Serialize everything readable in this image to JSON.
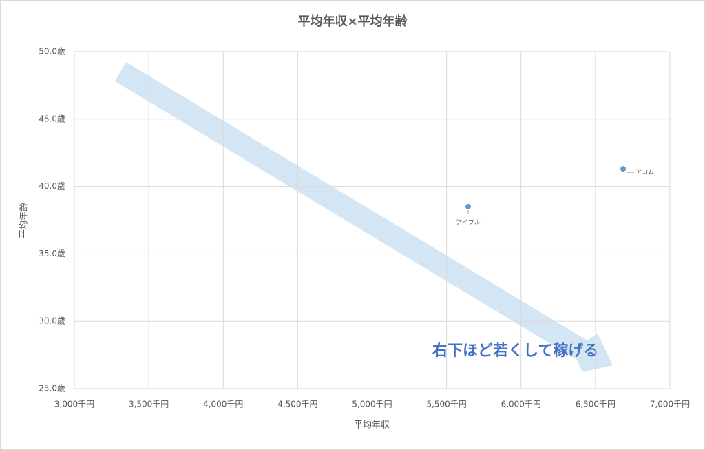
{
  "chart_data": {
    "type": "scatter",
    "title": "平均年収×平均年齢",
    "x_label": "平均年収",
    "y_label": "平均年齢",
    "x": [
      5645,
      6686
    ],
    "values": [
      38.5,
      41.3
    ],
    "point_labels": [
      "アイフル",
      "アコム"
    ],
    "color": "#5b9bd5",
    "xlim": [
      3000,
      7000
    ],
    "xticks": [
      {
        "value": 3000,
        "label": "3,000千円"
      },
      {
        "value": 3500,
        "label": "3,500千円"
      },
      {
        "value": 4000,
        "label": "4,000千円"
      },
      {
        "value": 4500,
        "label": "4,500千円"
      },
      {
        "value": 5000,
        "label": "5,000千円"
      },
      {
        "value": 5500,
        "label": "5,500千円"
      },
      {
        "value": 6000,
        "label": "6,000千円"
      },
      {
        "value": 6500,
        "label": "6,500千円"
      },
      {
        "value": 7000,
        "label": "7,000千円"
      }
    ],
    "ylim": [
      25,
      50
    ],
    "yticks": [
      {
        "value": 25,
        "label": "25.0歳"
      },
      {
        "value": 30,
        "label": "30.0歳"
      },
      {
        "value": 35,
        "label": "35.0歳"
      },
      {
        "value": 40,
        "label": "40.0歳"
      },
      {
        "value": 45,
        "label": "45.0歳"
      },
      {
        "value": 50,
        "label": "50.0歳"
      }
    ],
    "grid": true,
    "annotation": "右下ほど若くして稼げる"
  }
}
